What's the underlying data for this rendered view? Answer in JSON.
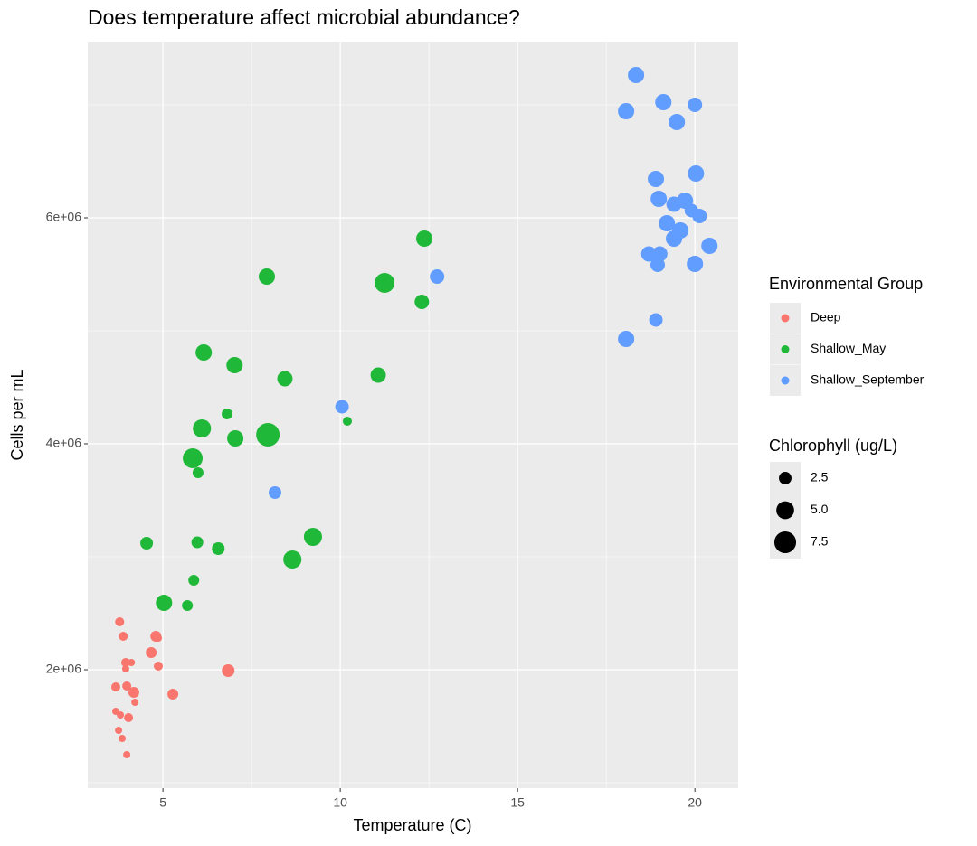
{
  "chart_data": {
    "type": "scatter",
    "title": "Does temperature affect microbial abundance?",
    "x_label": "Temperature (C)",
    "y_label": "Cells per mL",
    "xlim": [
      2.88,
      21.22
    ],
    "xticks": [
      5,
      10,
      15,
      20
    ],
    "ylim": [
      952000,
      7552000
    ],
    "yticks": [
      {
        "value": 2000000,
        "label": "2e+06"
      },
      {
        "value": 4000000,
        "label": "4e+06"
      },
      {
        "value": 6000000,
        "label": "6e+06"
      }
    ],
    "grid": true,
    "legend_title": "Environmental Group",
    "size_legend": {
      "title": "Chlorophyll (ug/L)",
      "values": [
        2.5,
        {
          "value": 5,
          "label": "5.0"
        },
        7.5
      ]
    },
    "series": [
      {
        "name": "Deep",
        "color": "#f8766d",
        "x": [
          3.78,
          3.88,
          4.8,
          4.87,
          4.67,
          3.95,
          4.11,
          3.95,
          4.87,
          6.84,
          3.67,
          3.98,
          4.18,
          5.28,
          4.21,
          3.67,
          3.8,
          4.03,
          3.75,
          3.85,
          3.98
        ],
        "values": [
          2424000,
          2296000,
          2296000,
          2280000,
          2152000,
          2064000,
          2064000,
          2008000,
          2032000,
          1992000,
          1848000,
          1856000,
          1800000,
          1784000,
          1712000,
          1632000,
          1600000,
          1576000,
          1464000,
          1392000,
          1248000
        ],
        "sizes": [
          1.3,
          1.3,
          1.86,
          0.83,
          1.86,
          1.3,
          0.83,
          0.83,
          1.3,
          2.53,
          1.3,
          1.3,
          1.86,
          1.86,
          0.83,
          0.83,
          0.83,
          1.3,
          0.83,
          0.83,
          0.83
        ]
      },
      {
        "name": "Shallow_May",
        "color": "#1fb838",
        "x": [
          12.37,
          7.93,
          11.25,
          12.3,
          6.15,
          7.02,
          8.44,
          11.07,
          6.81,
          10.2,
          6.1,
          7.96,
          7.04,
          5.84,
          5.99,
          4.54,
          5.97,
          6.56,
          9.23,
          8.65,
          5.87,
          5.03,
          5.69
        ],
        "values": [
          5816000,
          5480000,
          5424000,
          5256000,
          4808000,
          4696000,
          4576000,
          4608000,
          4264000,
          4200000,
          4136000,
          4080000,
          4048000,
          3872000,
          3744000,
          3120000,
          3128000,
          3072000,
          3176000,
          2976000,
          2792000,
          2592000,
          2568000
        ],
        "sizes": [
          4.2,
          4.2,
          6.2,
          3.3,
          4.2,
          4.2,
          3.7,
          3.7,
          1.86,
          1.3,
          5.2,
          8.7,
          4.2,
          6.2,
          1.86,
          2.53,
          2.2,
          2.53,
          5.2,
          5.2,
          1.86,
          4.2,
          1.86
        ]
      },
      {
        "name": "Shallow_September",
        "color": "#619cff",
        "x": [
          18.34,
          19.11,
          20.0,
          18.06,
          19.49,
          18.9,
          20.03,
          18.98,
          19.72,
          19.41,
          19.9,
          20.13,
          19.21,
          19.59,
          19.41,
          20.41,
          18.7,
          19.01,
          18.95,
          20.0,
          12.73,
          18.9,
          18.06,
          10.05,
          8.16
        ],
        "values": [
          7264000,
          7024000,
          7000000,
          6944000,
          6848000,
          6344000,
          6392000,
          6168000,
          6152000,
          6120000,
          6064000,
          6016000,
          5952000,
          5888000,
          5816000,
          5752000,
          5680000,
          5680000,
          5584000,
          5592000,
          5480000,
          5096000,
          4928000,
          4328000,
          3568000
        ],
        "sizes": [
          4.2,
          4.2,
          3.3,
          4.2,
          4.2,
          4.2,
          4.2,
          4.2,
          4.2,
          3.7,
          2.9,
          3.3,
          4.2,
          4.2,
          4.2,
          4.2,
          3.7,
          3.7,
          3.3,
          4.2,
          3.3,
          2.9,
          4.2,
          2.9,
          2.53
        ]
      }
    ]
  }
}
